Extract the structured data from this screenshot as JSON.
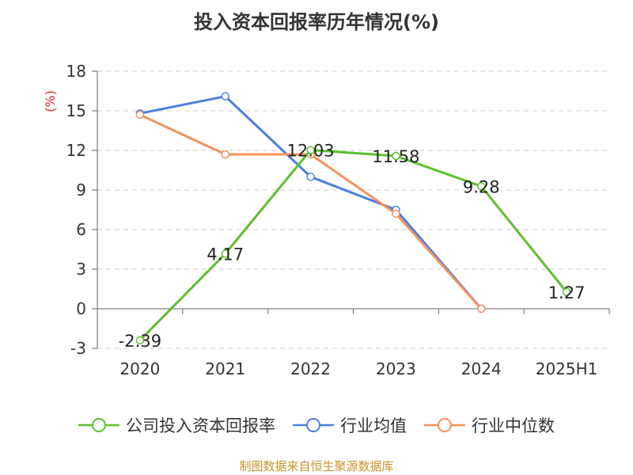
{
  "chart_data": {
    "type": "line",
    "title": "投入资本回报率历年情况(%)",
    "ylabel": "(%)",
    "xlabel": "",
    "categories": [
      "2020",
      "2021",
      "2022",
      "2023",
      "2024",
      "2025H1"
    ],
    "ylim": [
      -3,
      18
    ],
    "yticks": [
      -3,
      0,
      3,
      6,
      9,
      12,
      15,
      18
    ],
    "grid": "horizontal dashed",
    "legend_position": "bottom",
    "series": [
      {
        "name": "公司投入资本回报率",
        "color": "#5ac12e",
        "values": [
          -2.39,
          4.17,
          12.03,
          11.58,
          9.28,
          1.27
        ],
        "labels": [
          "-2.39",
          "4.17",
          "12.03",
          "11.58",
          "9.28",
          "1.27"
        ]
      },
      {
        "name": "行业均值",
        "color": "#4a7fe0",
        "values": [
          14.8,
          16.1,
          10.0,
          7.5,
          0.0,
          null
        ]
      },
      {
        "name": "行业中位数",
        "color": "#f5915a",
        "values": [
          14.7,
          11.7,
          11.7,
          7.2,
          0.0,
          null
        ]
      }
    ]
  },
  "source_text": "制图数据来自恒生聚源数据库"
}
